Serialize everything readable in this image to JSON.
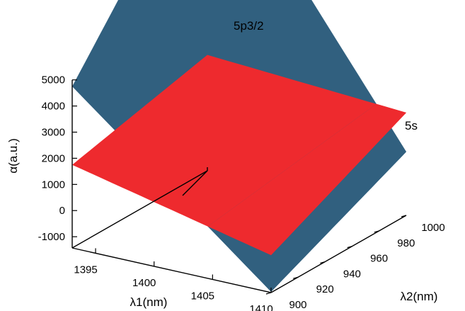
{
  "chart_data": {
    "type": "surface3d",
    "title": "",
    "xlabel": "λ1(nm)",
    "ylabel": "λ2(nm)",
    "zlabel": "α(a.u.)",
    "xlim": [
      1393,
      1410
    ],
    "ylim": [
      900,
      1000
    ],
    "zlim": [
      -1500,
      5000
    ],
    "xticks": [
      "1395",
      "1400",
      "1405",
      "1410"
    ],
    "yticks": [
      "900",
      "920",
      "940",
      "960",
      "980",
      "1000"
    ],
    "zticks": [
      "5000",
      "4000",
      "3000",
      "2000",
      "1000",
      "0",
      "-1000"
    ],
    "series": [
      {
        "name": "5p3/2",
        "color": "#31607f",
        "corners": {
          "x1393_y900": 4750,
          "x1410_y900": -1400,
          "x1393_y1000": 11500,
          "x1410_y1000": 1000
        }
      },
      {
        "name": "5s",
        "color": "#ee2a2e",
        "corners": {
          "x1393_y900": 1750,
          "x1410_y900": 0,
          "x1393_y1000": 3000,
          "x1410_y1000": 2500
        }
      }
    ]
  }
}
